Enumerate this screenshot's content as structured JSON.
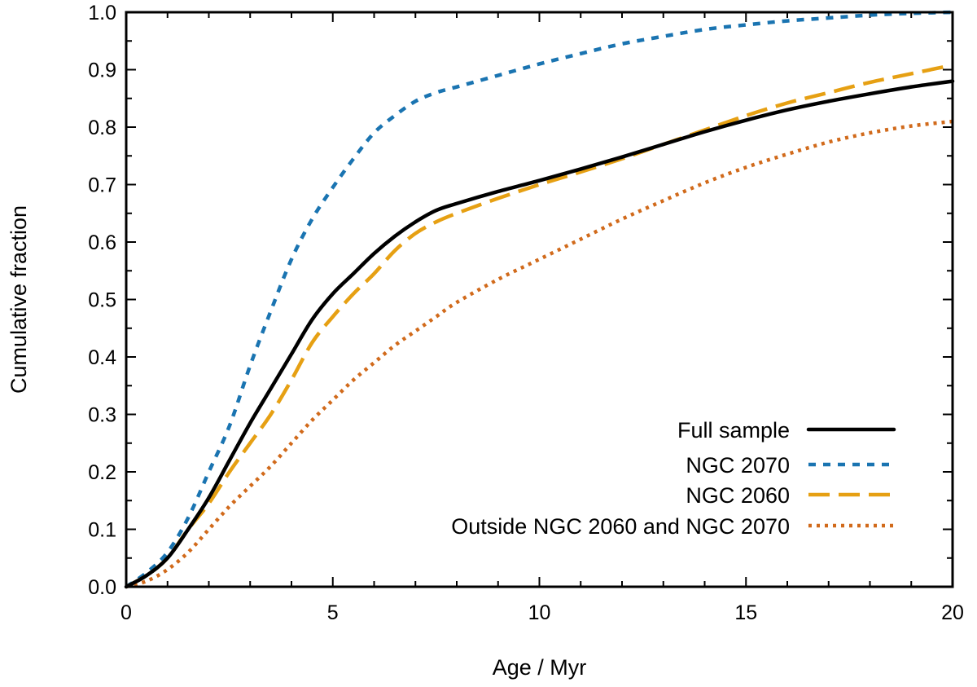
{
  "chart_data": {
    "type": "line",
    "title": "",
    "xlabel": "Age / Myr",
    "ylabel": "Cumulative fraction",
    "xlim": [
      0,
      20
    ],
    "ylim": [
      0,
      1
    ],
    "xticks": [
      0,
      5,
      10,
      15,
      20
    ],
    "xtick_labels": [
      "0",
      "5",
      "10",
      "15",
      "20"
    ],
    "yticks": [
      0,
      0.1,
      0.2,
      0.3,
      0.4,
      0.5,
      0.6,
      0.7,
      0.8,
      0.9,
      1.0
    ],
    "ytick_labels": [
      "0.0",
      "0.1",
      "0.2",
      "0.3",
      "0.4",
      "0.5",
      "0.6",
      "0.7",
      "0.8",
      "0.9",
      "1.0"
    ],
    "x_minor_step": 1,
    "y_minor_step": 0.05,
    "grid": false,
    "legend_position": "bottom-right",
    "series": [
      {
        "name": "Full sample",
        "color": "#000000",
        "dash": "solid",
        "x": [
          0,
          0.5,
          1,
          1.5,
          2,
          2.5,
          3,
          3.5,
          4,
          4.5,
          5,
          5.5,
          6,
          6.5,
          7,
          7.5,
          8,
          9,
          10,
          11,
          12,
          13,
          14,
          15,
          16,
          17,
          18,
          19,
          20
        ],
        "y": [
          0.0,
          0.02,
          0.05,
          0.1,
          0.155,
          0.22,
          0.285,
          0.345,
          0.405,
          0.465,
          0.51,
          0.545,
          0.58,
          0.61,
          0.635,
          0.655,
          0.667,
          0.688,
          0.707,
          0.727,
          0.748,
          0.77,
          0.792,
          0.812,
          0.83,
          0.845,
          0.858,
          0.87,
          0.88
        ]
      },
      {
        "name": "NGC 2070",
        "color": "#1a74b1",
        "dash": "short-dash",
        "x": [
          0,
          0.5,
          1,
          1.5,
          2,
          2.5,
          3,
          3.5,
          4,
          4.5,
          5,
          5.5,
          6,
          6.5,
          7,
          7.5,
          8,
          9,
          10,
          11,
          12,
          13,
          14,
          15,
          16,
          17,
          18,
          19,
          20
        ],
        "y": [
          0.0,
          0.025,
          0.06,
          0.12,
          0.2,
          0.28,
          0.385,
          0.48,
          0.57,
          0.64,
          0.695,
          0.745,
          0.79,
          0.82,
          0.845,
          0.86,
          0.87,
          0.89,
          0.91,
          0.928,
          0.945,
          0.958,
          0.97,
          0.978,
          0.985,
          0.99,
          0.995,
          0.998,
          1.0
        ]
      },
      {
        "name": "NGC 2060",
        "color": "#e6a013",
        "dash": "long-dash",
        "x": [
          0,
          0.5,
          1,
          1.5,
          2,
          2.5,
          3,
          3.5,
          4,
          4.5,
          5,
          5.5,
          6,
          6.5,
          7,
          7.5,
          8,
          9,
          10,
          11,
          12,
          13,
          14,
          15,
          16,
          17,
          18,
          19,
          20
        ],
        "y": [
          0.0,
          0.02,
          0.05,
          0.1,
          0.145,
          0.2,
          0.25,
          0.3,
          0.36,
          0.425,
          0.47,
          0.51,
          0.545,
          0.585,
          0.615,
          0.635,
          0.65,
          0.676,
          0.7,
          0.722,
          0.745,
          0.77,
          0.795,
          0.82,
          0.842,
          0.86,
          0.878,
          0.893,
          0.908
        ]
      },
      {
        "name": "Outside NGC 2060 and NGC 2070",
        "color": "#d16a1b",
        "dash": "dotted",
        "x": [
          0,
          0.5,
          1,
          1.5,
          2,
          2.5,
          3,
          3.5,
          4,
          4.5,
          5,
          5.5,
          6,
          6.5,
          7,
          7.5,
          8,
          9,
          10,
          11,
          12,
          13,
          14,
          15,
          16,
          17,
          18,
          19,
          20
        ],
        "y": [
          0.0,
          0.01,
          0.03,
          0.06,
          0.1,
          0.14,
          0.175,
          0.21,
          0.25,
          0.29,
          0.325,
          0.36,
          0.39,
          0.42,
          0.445,
          0.47,
          0.495,
          0.535,
          0.57,
          0.605,
          0.64,
          0.672,
          0.703,
          0.73,
          0.753,
          0.774,
          0.79,
          0.802,
          0.81
        ]
      }
    ]
  }
}
